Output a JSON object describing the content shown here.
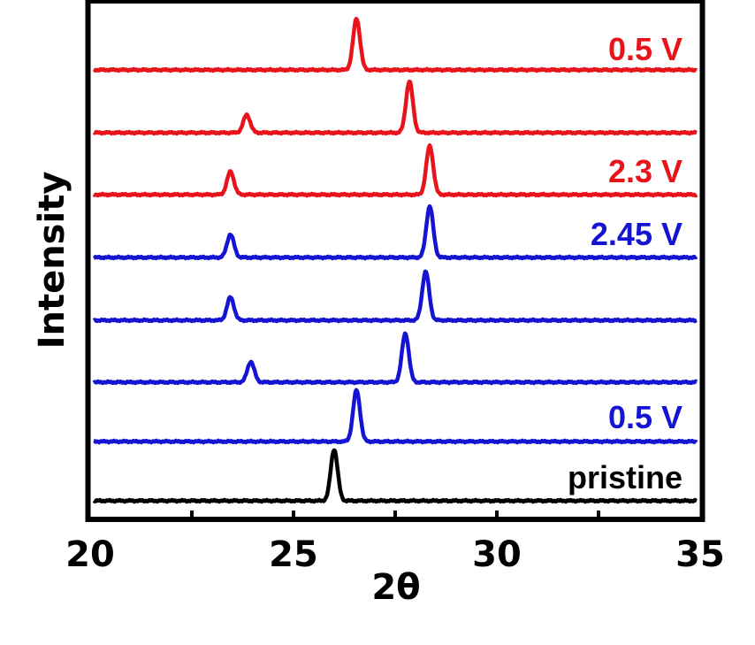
{
  "chart_data": {
    "type": "line",
    "xlabel": "2θ",
    "ylabel": "Intensity",
    "xlim": [
      20,
      35
    ],
    "x_ticks": [
      "20",
      "25",
      "30",
      "35"
    ],
    "y_ticks": "none",
    "grid": false,
    "legend": "none; series labels printed at the right end of curves",
    "colors": {
      "discharge": "#e8141b",
      "charge": "#1414d2",
      "pristine": "#000000"
    },
    "series": [
      {
        "label": "0.5 V",
        "color": "#e8141b",
        "peaks": [
          {
            "x": 26.55,
            "h": 1.0
          }
        ]
      },
      {
        "label": "",
        "color": "#e8141b",
        "peaks": [
          {
            "x": 23.85,
            "h": 0.35
          },
          {
            "x": 27.85,
            "h": 1.0
          }
        ]
      },
      {
        "label": "2.3 V",
        "color": "#e8141b",
        "peaks": [
          {
            "x": 23.45,
            "h": 0.45
          },
          {
            "x": 28.35,
            "h": 0.95
          }
        ]
      },
      {
        "label": "2.45 V",
        "color": "#1414d2",
        "peaks": [
          {
            "x": 23.45,
            "h": 0.45
          },
          {
            "x": 28.35,
            "h": 1.0
          }
        ]
      },
      {
        "label": "",
        "color": "#1414d2",
        "peaks": [
          {
            "x": 23.45,
            "h": 0.45
          },
          {
            "x": 28.25,
            "h": 0.95
          }
        ]
      },
      {
        "label": "",
        "color": "#1414d2",
        "peaks": [
          {
            "x": 23.95,
            "h": 0.4
          },
          {
            "x": 27.75,
            "h": 0.95
          }
        ]
      },
      {
        "label": "0.5 V",
        "color": "#1414d2",
        "peaks": [
          {
            "x": 26.55,
            "h": 1.0
          }
        ]
      },
      {
        "label": "pristine",
        "color": "#000000",
        "peaks": [
          {
            "x": 26.0,
            "h": 1.0
          }
        ]
      }
    ]
  }
}
